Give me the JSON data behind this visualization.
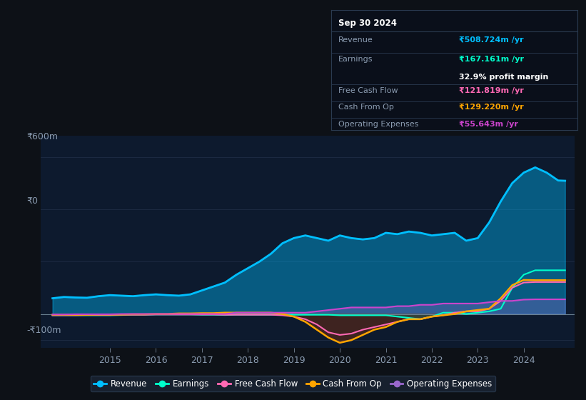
{
  "bg_color": "#0d1117",
  "chart_bg": "#0d1a2e",
  "grid_color": "#1e2d45",
  "text_color": "#8a9bb0",
  "title_color": "#ffffff",
  "y_label_600": "₹600m",
  "y_label_0": "₹0",
  "y_label_neg100": "-₹100m",
  "ylim": [
    -130,
    680
  ],
  "legend_items": [
    "Revenue",
    "Earnings",
    "Free Cash Flow",
    "Cash From Op",
    "Operating Expenses"
  ],
  "legend_colors": [
    "#00bfff",
    "#00ffcc",
    "#ff69b4",
    "#ffa500",
    "#9966cc"
  ],
  "info_box": {
    "date": "Sep 30 2024",
    "revenue_label": "Revenue",
    "revenue": "₹508.724m /yr",
    "revenue_color": "#00bfff",
    "earnings_label": "Earnings",
    "earnings": "₹167.161m /yr",
    "earnings_color": "#00ffcc",
    "profit_margin": "32.9% profit margin",
    "free_cash_flow_label": "Free Cash Flow",
    "free_cash_flow": "₹121.819m /yr",
    "free_cash_flow_color": "#ff69b4",
    "cash_from_op_label": "Cash From Op",
    "cash_from_op": "₹129.220m /yr",
    "cash_from_op_color": "#ffa500",
    "operating_expenses_label": "Operating Expenses",
    "operating_expenses": "₹55.643m /yr",
    "operating_expenses_color": "#cc44cc"
  },
  "x_years": [
    2013.75,
    2014.0,
    2014.25,
    2014.5,
    2014.75,
    2015.0,
    2015.25,
    2015.5,
    2015.75,
    2016.0,
    2016.25,
    2016.5,
    2016.75,
    2017.0,
    2017.25,
    2017.5,
    2017.75,
    2018.0,
    2018.25,
    2018.5,
    2018.75,
    2019.0,
    2019.25,
    2019.5,
    2019.75,
    2020.0,
    2020.25,
    2020.5,
    2020.75,
    2021.0,
    2021.25,
    2021.5,
    2021.75,
    2022.0,
    2022.25,
    2022.5,
    2022.75,
    2023.0,
    2023.25,
    2023.5,
    2023.75,
    2024.0,
    2024.25,
    2024.5,
    2024.75,
    2024.9
  ],
  "revenue": [
    60,
    65,
    63,
    62,
    68,
    72,
    70,
    68,
    72,
    75,
    72,
    70,
    75,
    90,
    105,
    120,
    150,
    175,
    200,
    230,
    270,
    290,
    300,
    290,
    280,
    300,
    290,
    285,
    290,
    310,
    305,
    315,
    310,
    300,
    305,
    310,
    280,
    290,
    350,
    430,
    500,
    540,
    560,
    540,
    510,
    509
  ],
  "earnings": [
    -5,
    -5,
    -5,
    -5,
    -5,
    -5,
    -4,
    -3,
    -3,
    -2,
    -2,
    -2,
    -2,
    -3,
    -3,
    -4,
    -3,
    -3,
    -3,
    -3,
    -3,
    -3,
    -3,
    -3,
    -3,
    -5,
    -5,
    -5,
    -5,
    -5,
    -10,
    -15,
    -20,
    -10,
    5,
    5,
    0,
    5,
    10,
    20,
    100,
    150,
    167,
    167,
    167,
    167
  ],
  "free_cash_flow": [
    -5,
    -5,
    -5,
    -4,
    -4,
    -4,
    -3,
    -3,
    -3,
    -2,
    -2,
    -2,
    -2,
    -2,
    -2,
    -3,
    -3,
    -3,
    -3,
    -3,
    -5,
    -10,
    -20,
    -40,
    -70,
    -80,
    -75,
    -60,
    -50,
    -40,
    -30,
    -20,
    -20,
    -10,
    -5,
    5,
    10,
    10,
    20,
    50,
    100,
    120,
    122,
    122,
    122,
    122
  ],
  "cash_from_op": [
    -3,
    -3,
    -3,
    -3,
    -2,
    -2,
    -2,
    -1,
    -1,
    0,
    0,
    2,
    2,
    3,
    3,
    5,
    5,
    5,
    5,
    5,
    0,
    -10,
    -30,
    -60,
    -90,
    -110,
    -100,
    -80,
    -60,
    -50,
    -30,
    -20,
    -20,
    -10,
    -5,
    0,
    10,
    15,
    20,
    60,
    110,
    130,
    129,
    129,
    129,
    129
  ],
  "operating_expenses": [
    -2,
    -2,
    -1,
    -1,
    -1,
    -1,
    0,
    0,
    0,
    0,
    0,
    0,
    0,
    0,
    0,
    0,
    5,
    5,
    5,
    5,
    5,
    5,
    5,
    10,
    15,
    20,
    25,
    25,
    25,
    25,
    30,
    30,
    35,
    35,
    40,
    40,
    40,
    40,
    45,
    50,
    50,
    55,
    56,
    56,
    56,
    56
  ]
}
